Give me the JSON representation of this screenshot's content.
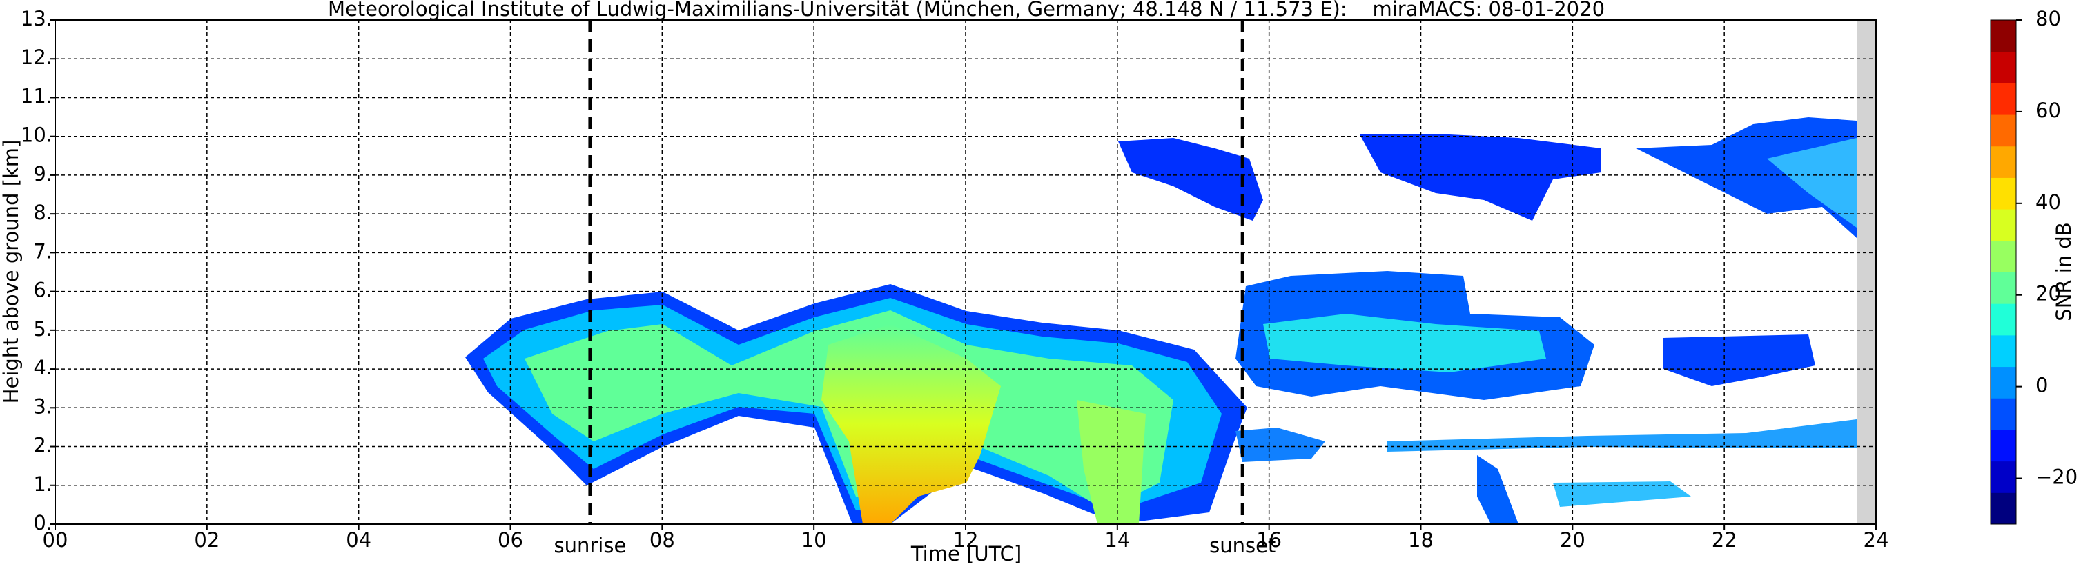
{
  "chart_data": {
    "type": "heatmap",
    "title": "Meteorological Institute of Ludwig-Maximilians-Universität (München, Germany; 48.148 N / 11.573 E):    miraMACS: 08-01-2020",
    "x_label": "Time [UTC]",
    "y_label": "Height above ground [km]",
    "xlim": [
      0,
      24
    ],
    "xticks": [
      {
        "value": 0,
        "label": "00"
      },
      {
        "value": 2,
        "label": "02"
      },
      {
        "value": 4,
        "label": "04"
      },
      {
        "value": 6,
        "label": "06"
      },
      {
        "value": 8,
        "label": "08"
      },
      {
        "value": 10,
        "label": "10"
      },
      {
        "value": 12,
        "label": "12"
      },
      {
        "value": 14,
        "label": "14"
      },
      {
        "value": 16,
        "label": "16"
      },
      {
        "value": 18,
        "label": "18"
      },
      {
        "value": 20,
        "label": "20"
      },
      {
        "value": 22,
        "label": "22"
      },
      {
        "value": 24,
        "label": "24"
      }
    ],
    "ylim": [
      0,
      13
    ],
    "yticks": [
      {
        "value": 0,
        "label": "0."
      },
      {
        "value": 1,
        "label": "1."
      },
      {
        "value": 2,
        "label": "2."
      },
      {
        "value": 3,
        "label": "3."
      },
      {
        "value": 4,
        "label": "4."
      },
      {
        "value": 5,
        "label": "5."
      },
      {
        "value": 6,
        "label": "6."
      },
      {
        "value": 7,
        "label": "7."
      },
      {
        "value": 8,
        "label": "8."
      },
      {
        "value": 9,
        "label": "9."
      },
      {
        "value": 10,
        "label": "10."
      },
      {
        "value": 11,
        "label": "11."
      },
      {
        "value": 12,
        "label": "12."
      },
      {
        "value": 13,
        "label": "13."
      }
    ],
    "grid": true,
    "vlines": [
      {
        "x": 7.05,
        "label": "sunrise"
      },
      {
        "x": 15.65,
        "label": "sunset"
      }
    ],
    "colorbar": {
      "label": "SNR in dB",
      "clim": [
        -30,
        80
      ],
      "ticks": [
        {
          "value": -20,
          "label": "−20"
        },
        0,
        20,
        40,
        60,
        80
      ],
      "colormap": [
        "#00007f",
        "#0000c8",
        "#0010ff",
        "#0050ff",
        "#0090ff",
        "#00d0ff",
        "#20ffd8",
        "#60ff98",
        "#98ff60",
        "#d8ff20",
        "#ffe000",
        "#ffa800",
        "#ff6a00",
        "#ff2c00",
        "#c80000",
        "#8f0000"
      ]
    }
  }
}
